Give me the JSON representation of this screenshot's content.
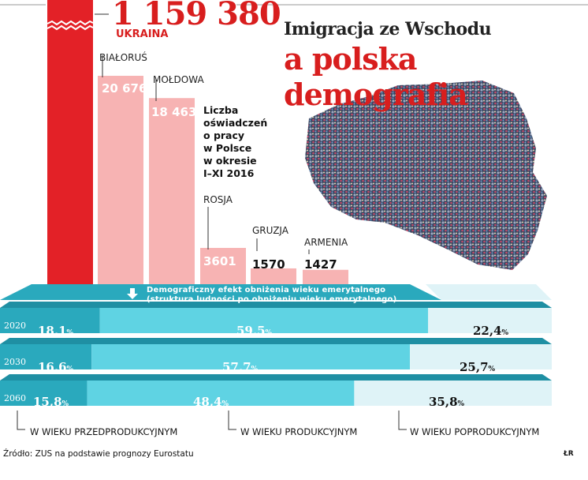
{
  "title_line1": "Imigracja ze Wschodu",
  "title_line2": "a polska demografia",
  "subtitle_lines": [
    "Liczba",
    "oświadczeń",
    "o pracy",
    "w Polsce",
    "w okresie",
    "I–XI 2016"
  ],
  "colors": {
    "accent_red": "#e32127",
    "pink": "#f7b3b3",
    "teal_dark": "#2aa9bd",
    "teal_light": "#5fd3e3",
    "pale": "#dff3f7"
  },
  "chart_data": [
    {
      "type": "bar",
      "categories": [
        "UKRAINA",
        "BIAŁORUŚ",
        "MOŁDOWA",
        "ROSJA",
        "GRUZJA",
        "ARMENIA"
      ],
      "values": [
        1159380,
        20676,
        18463,
        3601,
        1570,
        1427
      ],
      "value_labels": [
        "1 159 380",
        "20 676",
        "18 463",
        "3601",
        "1570",
        "1427"
      ]
    },
    {
      "type": "bar",
      "stacked": true,
      "orientation": "horizontal",
      "title": "Demograficzny efekt obniżenia wieku emerytalnego",
      "subtitle": "(struktura ludności po obniżeniu wieku emerytalnego)",
      "categories": [
        "2020",
        "2030",
        "2060"
      ],
      "series": [
        {
          "name": "W WIEKU PRZEDPRODUKCYJNYM",
          "values": [
            18.1,
            16.6,
            15.8
          ],
          "labels": [
            "18,1",
            "16,6",
            "15,8"
          ]
        },
        {
          "name": "W WIEKU PRODUKCYJNYM",
          "values": [
            59.5,
            57.7,
            48.4
          ],
          "labels": [
            "59,5",
            "57,7",
            "48,4"
          ]
        },
        {
          "name": "W WIEKU POPRODUKCYJNYM",
          "values": [
            22.4,
            25.7,
            35.8
          ],
          "labels": [
            "22,4",
            "25,7",
            "35,8"
          ]
        }
      ],
      "unit": "%"
    }
  ],
  "source": "Źródło: ZUS na podstawie prognozy Eurostatu",
  "credit": "ŁR"
}
